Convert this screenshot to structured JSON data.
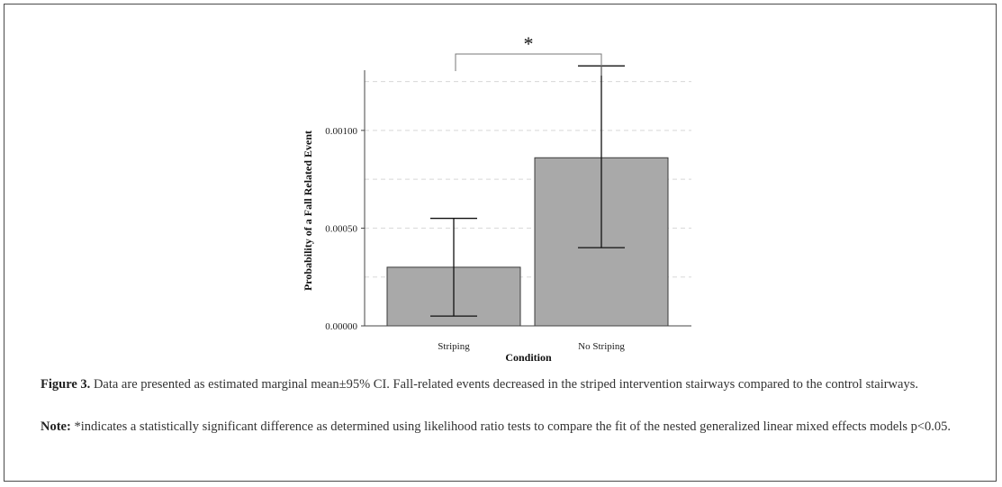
{
  "chart_data": {
    "type": "bar",
    "categories": [
      "Striping",
      "No Striping"
    ],
    "values": [
      0.0003,
      0.00086
    ],
    "ci_lower": [
      5e-05,
      0.0004
    ],
    "ci_upper": [
      0.00055,
      0.00133
    ],
    "xlabel": "Condition",
    "ylabel": "Probability of a Fall Related Event",
    "ylim": [
      0,
      0.0014
    ],
    "yticks": [
      0.0,
      0.0005,
      0.001
    ],
    "ytick_labels": [
      "0.00000",
      "0.00050",
      "0.00100"
    ],
    "grid": "horizontal dashed",
    "bar_color": "#a9a9a9",
    "significance": {
      "between": [
        "Striping",
        "No Striping"
      ],
      "marker": "*"
    }
  },
  "caption": {
    "figure_label": "Figure 3.",
    "figure_text": "Data are presented as estimated marginal mean±95% CI. Fall-related events decreased in the striped intervention stairways compared to the control stairways.",
    "note_label": "Note:",
    "note_text": "*indicates a statistically significant difference as determined using likelihood ratio tests to compare the fit of the nested generalized linear mixed effects models p<0.05."
  }
}
